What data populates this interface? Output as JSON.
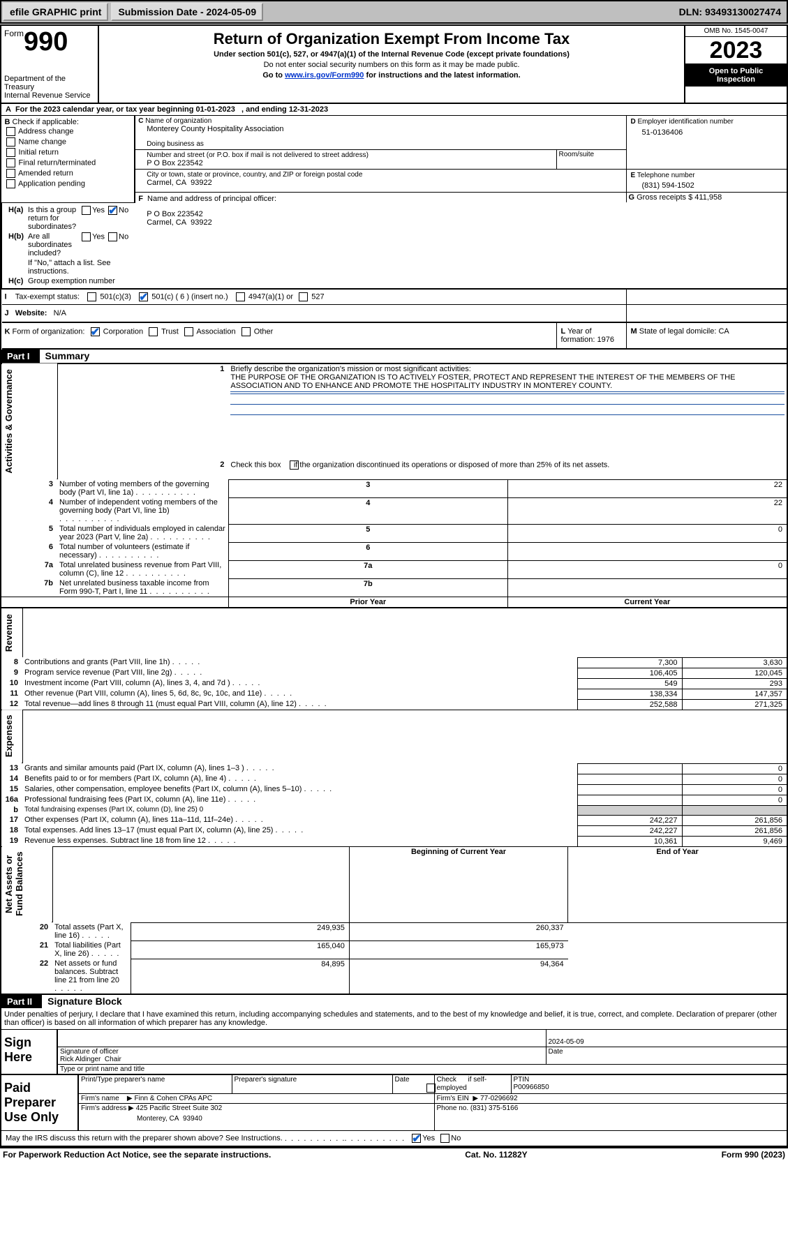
{
  "topbar": {
    "efile": "efile GRAPHIC print",
    "submission": "Submission Date - 2024-05-09",
    "dln": "DLN: 93493130027474"
  },
  "header": {
    "form_prefix": "Form",
    "form_no": "990",
    "title": "Return of Organization Exempt From Income Tax",
    "sub": "Under section 501(c), 527, or 4947(a)(1) of the Internal Revenue Code (except private foundations)",
    "note": "Do not enter social security numbers on this form as it may be made public.",
    "goto_pre": "Go to ",
    "goto_link": "www.irs.gov/Form990",
    "goto_post": " for instructions and the latest information.",
    "dept": "Department of the Treasury",
    "irs": "Internal Revenue Service",
    "omb": "OMB No. 1545-0047",
    "year": "2023",
    "open": "Open to Public",
    "insp": "Inspection",
    "tax_year": "For the 2023 calendar year, or tax year beginning 01-01-2023   , and ending 12-31-2023",
    "b_label": "Check if applicable:",
    "b_items": [
      "Address change",
      "Name change",
      "Initial return",
      "Final return/terminated",
      "Amended return",
      "Application pending"
    ],
    "c_label": "Name of organization",
    "c_name": "Monterey County Hospitality Association",
    "dba_label": "Doing business as",
    "addr_label": "Number and street (or P.O. box if mail is not delivered to street address)",
    "room": "Room/suite",
    "addr": "P O Box 223542",
    "city_label": "City or town, state or province, country, and ZIP or foreign postal code",
    "city": "Carmel, CA  93922",
    "d_label": "Employer identification number",
    "d_val": "51-0136406",
    "e_label": "Telephone number",
    "e_val": "(831) 594-1502",
    "g_label": "Gross receipts $",
    "g_val": "411,958",
    "f_label": "Name and address of principal officer:",
    "f_addr1": "P O Box 223542",
    "f_addr2": "Carmel, CA  93922",
    "ha": "Is this a group return for subordinates?",
    "hb": "Are all subordinates included?",
    "hb_note": "If \"No,\" attach a list. See instructions.",
    "hc": "Group exemption number",
    "yes": "Yes",
    "no": "No",
    "i": "Tax-exempt status:",
    "i_1": "501(c)(3)",
    "i_2": "501(c) ( 6 ) (insert no.)",
    "i_3": "4947(a)(1) or",
    "i_4": "527",
    "j": "Website:",
    "j_val": "N/A",
    "k": "Form of organization:",
    "k_1": "Corporation",
    "k_2": "Trust",
    "k_3": "Association",
    "k_4": "Other",
    "l": "Year of formation: 1976",
    "m": "State of legal domicile: CA"
  },
  "part1": {
    "part": "Part I",
    "title": "Summary",
    "l1": "Briefly describe the organization's mission or most significant activities:",
    "l1_text": "THE PURPOSE OF THE ORGANIZATION IS TO ACTIVELY FOSTER, PROTECT AND REPRESENT THE INTEREST OF THE MEMBERS OF THE ASSOCIATION AND TO ENHANCE AND PROMOTE THE HOSPITALITY INDUSTRY IN MONTEREY COUNTY.",
    "l2": "Check this box      if the organization discontinued its operations or disposed of more than 25% of its net assets.",
    "rows": [
      {
        "n": "3",
        "t": "Number of voting members of the governing body (Part VI, line 1a)",
        "v": "22"
      },
      {
        "n": "4",
        "t": "Number of independent voting members of the governing body (Part VI, line 1b)",
        "v": "22"
      },
      {
        "n": "5",
        "t": "Total number of individuals employed in calendar year 2023 (Part V, line 2a)",
        "v": "0"
      },
      {
        "n": "6",
        "t": "Total number of volunteers (estimate if necessary)",
        "v": ""
      },
      {
        "n": "7a",
        "t": "Total unrelated business revenue from Part VIII, column (C), line 12",
        "v": "0"
      },
      {
        "n": "7b",
        "t": "Net unrelated business taxable income from Form 990-T, Part I, line 11",
        "v": ""
      }
    ],
    "py": "Prior Year",
    "cy": "Current Year",
    "rev": [
      {
        "n": "8",
        "t": "Contributions and grants (Part VIII, line 1h)",
        "p": "7,300",
        "c": "3,630"
      },
      {
        "n": "9",
        "t": "Program service revenue (Part VIII, line 2g)",
        "p": "106,405",
        "c": "120,045"
      },
      {
        "n": "10",
        "t": "Investment income (Part VIII, column (A), lines 3, 4, and 7d )",
        "p": "549",
        "c": "293"
      },
      {
        "n": "11",
        "t": "Other revenue (Part VIII, column (A), lines 5, 6d, 8c, 9c, 10c, and 11e)",
        "p": "138,334",
        "c": "147,357"
      },
      {
        "n": "12",
        "t": "Total revenue—add lines 8 through 11 (must equal Part VIII, column (A), line 12)",
        "p": "252,588",
        "c": "271,325"
      }
    ],
    "exp": [
      {
        "n": "13",
        "t": "Grants and similar amounts paid (Part IX, column (A), lines 1–3 )",
        "p": "",
        "c": "0"
      },
      {
        "n": "14",
        "t": "Benefits paid to or for members (Part IX, column (A), line 4)",
        "p": "",
        "c": "0"
      },
      {
        "n": "15",
        "t": "Salaries, other compensation, employee benefits (Part IX, column (A), lines 5–10)",
        "p": "",
        "c": "0"
      },
      {
        "n": "16a",
        "t": "Professional fundraising fees (Part IX, column (A), line 11e)",
        "p": "",
        "c": "0"
      },
      {
        "n": "b",
        "t": "Total fundraising expenses (Part IX, column (D), line 25) 0",
        "p": "grey",
        "c": "grey"
      },
      {
        "n": "17",
        "t": "Other expenses (Part IX, column (A), lines 11a–11d, 11f–24e)",
        "p": "242,227",
        "c": "261,856"
      },
      {
        "n": "18",
        "t": "Total expenses. Add lines 13–17 (must equal Part IX, column (A), line 25)",
        "p": "242,227",
        "c": "261,856"
      },
      {
        "n": "19",
        "t": "Revenue less expenses. Subtract line 18 from line 12",
        "p": "10,361",
        "c": "9,469"
      }
    ],
    "boy": "Beginning of Current Year",
    "eoy": "End of Year",
    "net": [
      {
        "n": "20",
        "t": "Total assets (Part X, line 16)",
        "p": "249,935",
        "c": "260,337"
      },
      {
        "n": "21",
        "t": "Total liabilities (Part X, line 26)",
        "p": "165,040",
        "c": "165,973"
      },
      {
        "n": "22",
        "t": "Net assets or fund balances. Subtract line 21 from line 20",
        "p": "84,895",
        "c": "94,364"
      }
    ],
    "side": {
      "ag": "Activities & Governance",
      "rev": "Revenue",
      "exp": "Expenses",
      "net": "Net Assets or\nFund Balances"
    }
  },
  "part2": {
    "part": "Part II",
    "title": "Signature Block",
    "decl": "Under penalties of perjury, I declare that I have examined this return, including accompanying schedules and statements, and to the best of my knowledge and belief, it is true, correct, and complete. Declaration of preparer (other than officer) is based on all information of which preparer has any knowledge.",
    "sign": "Sign Here",
    "sig_off": "Signature of officer",
    "date": "Date",
    "date_v": "2024-05-09",
    "officer": "Rick Aldinger  Chair",
    "type_name": "Type or print name and title",
    "paid": "Paid Preparer Use Only",
    "prep_name_lbl": "Print/Type preparer's name",
    "prep_sig": "Preparer's signature",
    "check_se": "Check      if self-employed",
    "ptin_lbl": "PTIN",
    "ptin": "P00966850",
    "firm_name_lbl": "Firm's name",
    "firm_name": "Finn & Cohen CPAs APC",
    "firm_ein_lbl": "Firm's EIN",
    "firm_ein": "77-0296692",
    "firm_addr_lbl": "Firm's address",
    "firm_addr": "425 Pacific Street Suite 302",
    "firm_city": "Monterey, CA  93940",
    "phone_lbl": "Phone no.",
    "phone": "(831) 375-5166",
    "discuss": "May the IRS discuss this return with the preparer shown above? See Instructions."
  },
  "footer": {
    "pra": "For Paperwork Reduction Act Notice, see the separate instructions.",
    "cat": "Cat. No. 11282Y",
    "form": "Form 990 (2023)"
  }
}
